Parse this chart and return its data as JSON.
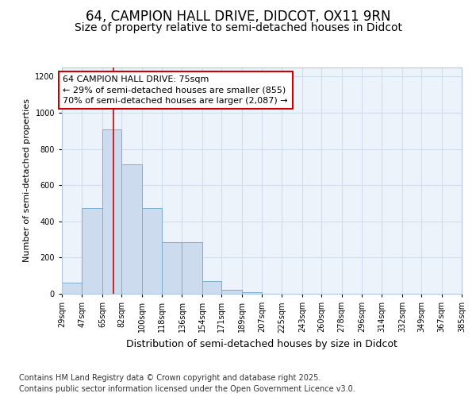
{
  "title1": "64, CAMPION HALL DRIVE, DIDCOT, OX11 9RN",
  "title2": "Size of property relative to semi-detached houses in Didcot",
  "xlabel": "Distribution of semi-detached houses by size in Didcot",
  "ylabel": "Number of semi-detached properties",
  "bin_labels": [
    "29sqm",
    "47sqm",
    "65sqm",
    "82sqm",
    "100sqm",
    "118sqm",
    "136sqm",
    "154sqm",
    "171sqm",
    "189sqm",
    "207sqm",
    "225sqm",
    "243sqm",
    "260sqm",
    "278sqm",
    "296sqm",
    "314sqm",
    "332sqm",
    "349sqm",
    "367sqm",
    "385sqm"
  ],
  "bin_left_edges": [
    29,
    47,
    65,
    82,
    100,
    118,
    136,
    154,
    171,
    189,
    207,
    225,
    243,
    260,
    278,
    296,
    314,
    332,
    349,
    367
  ],
  "bar_heights": [
    60,
    475,
    910,
    715,
    475,
    285,
    285,
    70,
    20,
    10,
    0,
    0,
    0,
    0,
    0,
    0,
    0,
    0,
    0,
    0
  ],
  "bar_color": "#ccdcee",
  "bar_edge_color": "#7aaed0",
  "vline_x": 75,
  "vline_color": "#cc0000",
  "annotation_text": "64 CAMPION HALL DRIVE: 75sqm\n← 29% of semi-detached houses are smaller (855)\n70% of semi-detached houses are larger (2,087) →",
  "ylim": [
    0,
    1250
  ],
  "yticks": [
    0,
    200,
    400,
    600,
    800,
    1000,
    1200
  ],
  "bg_color": "#edf3fb",
  "grid_color": "#d0dff0",
  "footer1": "Contains HM Land Registry data © Crown copyright and database right 2025.",
  "footer2": "Contains public sector information licensed under the Open Government Licence v3.0.",
  "title1_fontsize": 12,
  "title2_fontsize": 10,
  "annotation_fontsize": 8,
  "tick_fontsize": 7,
  "footer_fontsize": 7,
  "xlabel_fontsize": 9,
  "ylabel_fontsize": 8
}
